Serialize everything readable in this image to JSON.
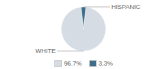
{
  "chart_data": {
    "type": "pie",
    "categories": [
      "WHITE",
      "HISPANIC"
    ],
    "values": [
      96.7,
      3.3
    ],
    "value_labels": [
      "96.7%",
      "3.3%"
    ],
    "colors": [
      "#d6dce4",
      "#3d6e8a"
    ],
    "legend": "bottom"
  }
}
